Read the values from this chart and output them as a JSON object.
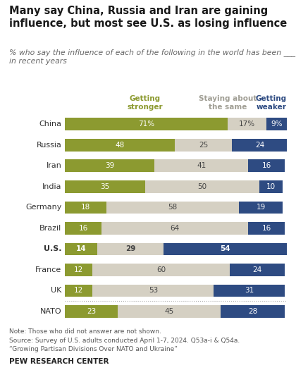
{
  "title": "Many say China, Russia and Iran are gaining\ninfluence, but most see U.S. as losing influence",
  "subtitle": "% who say the influence of each of the following in the world has been ___\nin recent years",
  "categories": [
    "China",
    "Russia",
    "Iran",
    "India",
    "Germany",
    "Brazil",
    "U.S.",
    "France",
    "UK",
    "NATO"
  ],
  "bold_label": [
    "U.S."
  ],
  "getting_stronger": [
    71,
    48,
    39,
    35,
    18,
    16,
    14,
    12,
    12,
    23
  ],
  "staying_same": [
    17,
    25,
    41,
    50,
    58,
    64,
    29,
    60,
    53,
    45
  ],
  "getting_weaker": [
    9,
    24,
    16,
    10,
    19,
    16,
    54,
    24,
    31,
    28
  ],
  "color_stronger": "#8c9a30",
  "color_same": "#d5d0c3",
  "color_weaker": "#2e4b82",
  "background_color": "#ffffff",
  "chart_bg": "#ffffff",
  "note_line1": "Note: Those who did not answer are not shown.",
  "note_line2": "Source: Survey of U.S. adults conducted April 1-7, 2024. Q53a-i & Q54a.",
  "note_line3": "“Growing Partisan Divisions Over NATO and Ukraine”",
  "footer": "PEW RESEARCH CENTER",
  "col_header_stronger": "Getting\nstronger",
  "col_header_same": "Staying about\nthe same",
  "col_header_weaker": "Getting\nweaker",
  "color_header_stronger": "#8c9a30",
  "color_header_same": "#a09e94",
  "color_header_weaker": "#2e4b82"
}
